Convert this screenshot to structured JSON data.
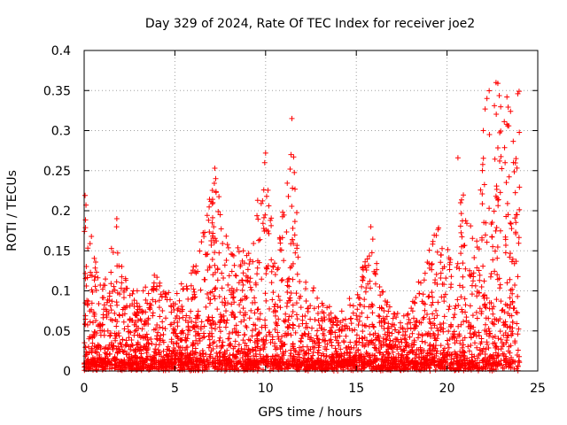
{
  "chart_data": {
    "type": "scatter",
    "title": "Day 329 of 2024, Rate Of TEC Index for receiver joe2",
    "xlabel": "GPS time / hours",
    "ylabel": "ROTI / TECUs",
    "xlim": [
      0,
      25
    ],
    "ylim": [
      0,
      0.4
    ],
    "x_ticks": [
      0,
      5,
      10,
      15,
      20,
      25
    ],
    "y_ticks": [
      0,
      0.05,
      0.1,
      0.15,
      0.2,
      0.25,
      0.3,
      0.35,
      0.4
    ],
    "x_tick_labels": [
      "0",
      "5",
      "10",
      "15",
      "20",
      "25"
    ],
    "y_tick_labels": [
      "0",
      "0.05",
      "0.1",
      "0.15",
      "0.2",
      "0.25",
      "0.3",
      "0.35",
      "0.4"
    ],
    "grid": true,
    "marker": "plus",
    "series_color": "#ff0000",
    "series": [
      {
        "name": "ROTI",
        "envelope": [
          {
            "x": 0.0,
            "y": 0.21
          },
          {
            "x": 0.3,
            "y": 0.17
          },
          {
            "x": 0.8,
            "y": 0.12
          },
          {
            "x": 1.2,
            "y": 0.11
          },
          {
            "x": 1.8,
            "y": 0.19
          },
          {
            "x": 2.2,
            "y": 0.12
          },
          {
            "x": 3.0,
            "y": 0.09
          },
          {
            "x": 4.0,
            "y": 0.12
          },
          {
            "x": 5.0,
            "y": 0.09
          },
          {
            "x": 6.0,
            "y": 0.12
          },
          {
            "x": 7.2,
            "y": 0.25
          },
          {
            "x": 8.0,
            "y": 0.17
          },
          {
            "x": 9.0,
            "y": 0.14
          },
          {
            "x": 10.0,
            "y": 0.27
          },
          {
            "x": 10.6,
            "y": 0.12
          },
          {
            "x": 11.4,
            "y": 0.31
          },
          {
            "x": 12.0,
            "y": 0.12
          },
          {
            "x": 13.0,
            "y": 0.08
          },
          {
            "x": 14.0,
            "y": 0.07
          },
          {
            "x": 15.0,
            "y": 0.09
          },
          {
            "x": 15.8,
            "y": 0.18
          },
          {
            "x": 16.5,
            "y": 0.09
          },
          {
            "x": 17.5,
            "y": 0.06
          },
          {
            "x": 18.5,
            "y": 0.11
          },
          {
            "x": 19.5,
            "y": 0.18
          },
          {
            "x": 20.5,
            "y": 0.12
          },
          {
            "x": 20.9,
            "y": 0.26
          },
          {
            "x": 21.5,
            "y": 0.14
          },
          {
            "x": 22.2,
            "y": 0.34
          },
          {
            "x": 22.7,
            "y": 0.36
          },
          {
            "x": 23.3,
            "y": 0.34
          },
          {
            "x": 23.9,
            "y": 0.35
          }
        ],
        "outliers": [
          {
            "x": 0.05,
            "y": 0.219
          },
          {
            "x": 0.1,
            "y": 0.207
          },
          {
            "x": 0.4,
            "y": 0.168
          },
          {
            "x": 1.8,
            "y": 0.19
          },
          {
            "x": 7.2,
            "y": 0.253
          },
          {
            "x": 7.25,
            "y": 0.24
          },
          {
            "x": 10.0,
            "y": 0.272
          },
          {
            "x": 9.95,
            "y": 0.26
          },
          {
            "x": 9.9,
            "y": 0.226
          },
          {
            "x": 11.45,
            "y": 0.315
          },
          {
            "x": 11.4,
            "y": 0.27
          },
          {
            "x": 11.35,
            "y": 0.252
          },
          {
            "x": 11.5,
            "y": 0.178
          },
          {
            "x": 15.8,
            "y": 0.18
          },
          {
            "x": 20.6,
            "y": 0.266
          },
          {
            "x": 22.0,
            "y": 0.3
          },
          {
            "x": 22.2,
            "y": 0.34
          },
          {
            "x": 22.1,
            "y": 0.327
          },
          {
            "x": 22.7,
            "y": 0.36
          },
          {
            "x": 22.8,
            "y": 0.359
          },
          {
            "x": 23.3,
            "y": 0.342
          },
          {
            "x": 23.5,
            "y": 0.324
          },
          {
            "x": 23.4,
            "y": 0.306
          },
          {
            "x": 23.9,
            "y": 0.346
          },
          {
            "x": 23.8,
            "y": 0.265
          },
          {
            "x": 23.2,
            "y": 0.26
          },
          {
            "x": 22.9,
            "y": 0.262
          }
        ]
      }
    ]
  }
}
